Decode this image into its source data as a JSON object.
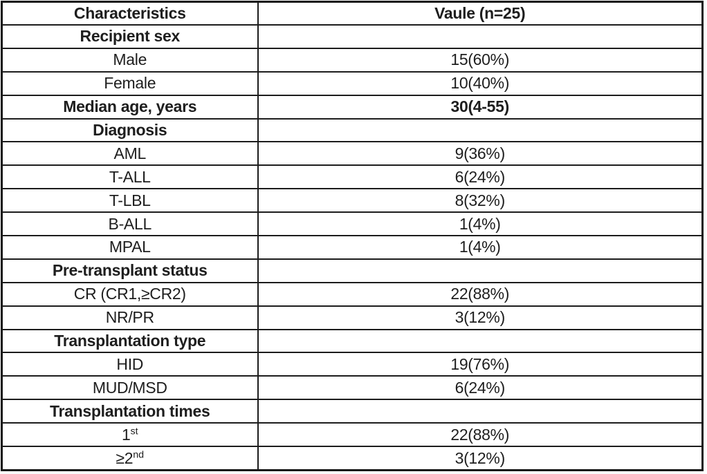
{
  "table": {
    "columns": [
      {
        "label": "Characteristics"
      },
      {
        "label": "Vaule (n=25)"
      }
    ],
    "rows": [
      {
        "label": "Recipient sex",
        "value": "",
        "bold": true
      },
      {
        "label": "Male",
        "value": "15(60%)",
        "bold": false
      },
      {
        "label": "Female",
        "value": "10(40%)",
        "bold": false
      },
      {
        "label": "Median age, years",
        "value": "30(4-55)",
        "bold": true
      },
      {
        "label": "Diagnosis",
        "value": "",
        "bold": true
      },
      {
        "label": "AML",
        "value": "9(36%)",
        "bold": false
      },
      {
        "label": "T-ALL",
        "value": "6(24%)",
        "bold": false
      },
      {
        "label": "T-LBL",
        "value": "8(32%)",
        "bold": false
      },
      {
        "label": "B-ALL",
        "value": "1(4%)",
        "bold": false
      },
      {
        "label": "MPAL",
        "value": "1(4%)",
        "bold": false
      },
      {
        "label": "Pre-transplant status",
        "value": "",
        "bold": true
      },
      {
        "label": "CR (CR1,≥CR2)",
        "value": "22(88%)",
        "bold": false
      },
      {
        "label": "NR/PR",
        "value": "3(12%)",
        "bold": false
      },
      {
        "label": "Transplantation type",
        "value": "",
        "bold": true
      },
      {
        "label": "HID",
        "value": "19(76%)",
        "bold": false
      },
      {
        "label": "MUD/MSD",
        "value": "6(24%)",
        "bold": false
      },
      {
        "label": "Transplantation times",
        "value": "",
        "bold": true
      },
      {
        "label": "1",
        "label_sup": "st",
        "value": "22(88%)",
        "bold": false
      },
      {
        "label": "≥2",
        "label_sup": "nd",
        "value": "3(12%)",
        "bold": false
      }
    ]
  }
}
